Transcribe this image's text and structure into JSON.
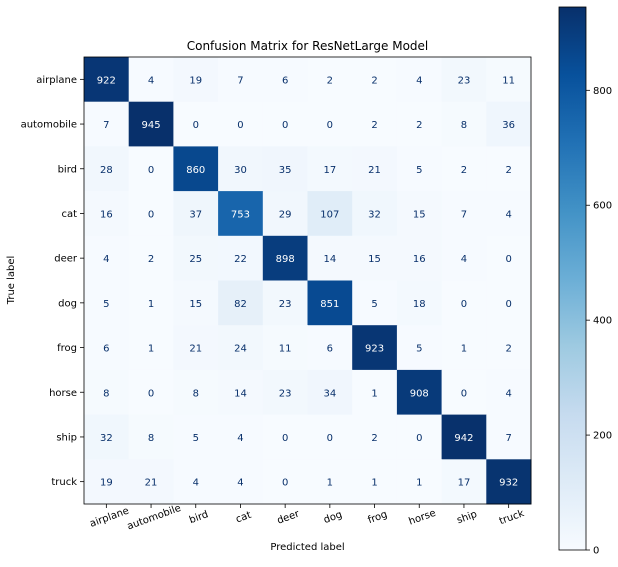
{
  "chart_data": {
    "type": "heatmap",
    "title": "Confusion Matrix for ResNetLarge Model",
    "xlabel": "Predicted label",
    "ylabel": "True label",
    "x_categories": [
      "airplane",
      "automobile",
      "bird",
      "cat",
      "deer",
      "dog",
      "frog",
      "horse",
      "ship",
      "truck"
    ],
    "y_categories": [
      "airplane",
      "automobile",
      "bird",
      "cat",
      "deer",
      "dog",
      "frog",
      "horse",
      "ship",
      "truck"
    ],
    "values": [
      [
        922,
        4,
        19,
        7,
        6,
        2,
        2,
        4,
        23,
        11
      ],
      [
        7,
        945,
        0,
        0,
        0,
        0,
        2,
        2,
        8,
        36
      ],
      [
        28,
        0,
        860,
        30,
        35,
        17,
        21,
        5,
        2,
        2
      ],
      [
        16,
        0,
        37,
        753,
        29,
        107,
        32,
        15,
        7,
        4
      ],
      [
        4,
        2,
        25,
        22,
        898,
        14,
        15,
        16,
        4,
        0
      ],
      [
        5,
        1,
        15,
        82,
        23,
        851,
        5,
        18,
        0,
        0
      ],
      [
        6,
        1,
        21,
        24,
        11,
        6,
        923,
        5,
        1,
        2
      ],
      [
        8,
        0,
        8,
        14,
        23,
        34,
        1,
        908,
        0,
        4
      ],
      [
        32,
        8,
        5,
        4,
        0,
        0,
        2,
        0,
        942,
        7
      ],
      [
        19,
        21,
        4,
        4,
        0,
        1,
        1,
        1,
        17,
        932
      ]
    ],
    "colormap": "Blues",
    "colormap_stops": [
      "#f7fbff",
      "#deebf7",
      "#c6dbef",
      "#9ecae1",
      "#6baed6",
      "#4292c6",
      "#2171b5",
      "#08519c",
      "#08306b"
    ],
    "colorbar": {
      "range": [
        0,
        945
      ],
      "ticks": [
        0,
        200,
        400,
        600,
        800
      ]
    },
    "grid": false,
    "x_tick_rotation": "rotated ~20 degrees"
  }
}
